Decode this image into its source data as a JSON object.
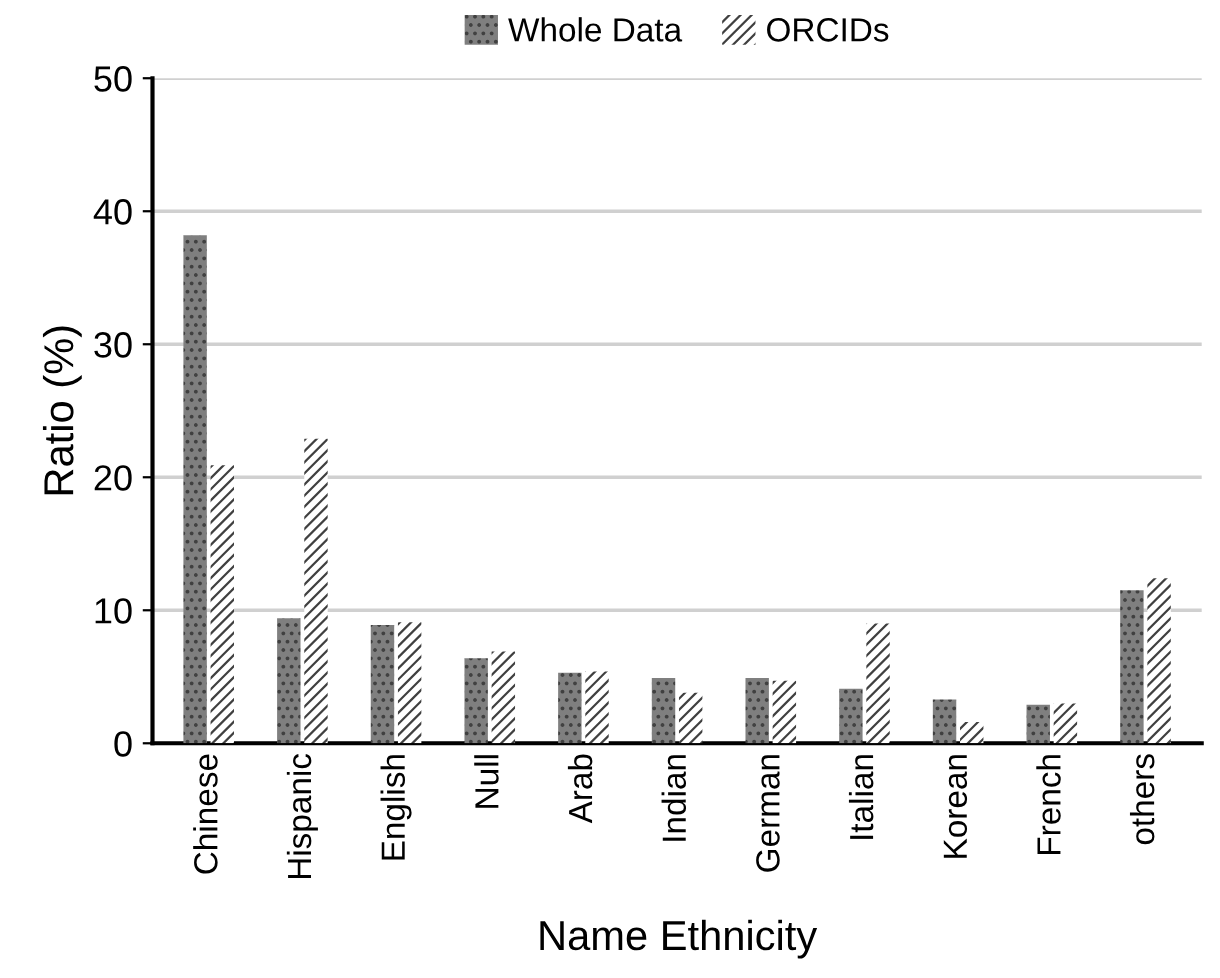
{
  "chart_data": {
    "type": "bar",
    "xlabel": "Name Ethnicity",
    "ylabel": "Ratio (%)",
    "categories": [
      "Chinese",
      "Hispanic",
      "English",
      "Null",
      "Arab",
      "Indian",
      "German",
      "Italian",
      "Korean",
      "French",
      "others"
    ],
    "series": [
      {
        "name": "Whole Data",
        "color": "#7f7f7f",
        "values": [
          38.2,
          9.4,
          8.9,
          6.4,
          5.3,
          4.9,
          4.9,
          4.1,
          3.3,
          2.9,
          11.5
        ]
      },
      {
        "name": "ORCIDs",
        "color": "#ffffff",
        "values": [
          20.9,
          22.9,
          9.1,
          6.9,
          5.4,
          3.8,
          4.7,
          9.0,
          1.6,
          3.0,
          12.4
        ]
      }
    ],
    "ylim": [
      0,
      50
    ],
    "yticks": [
      0,
      10,
      20,
      30,
      40,
      50
    ],
    "grid": "y",
    "legend": "top"
  }
}
